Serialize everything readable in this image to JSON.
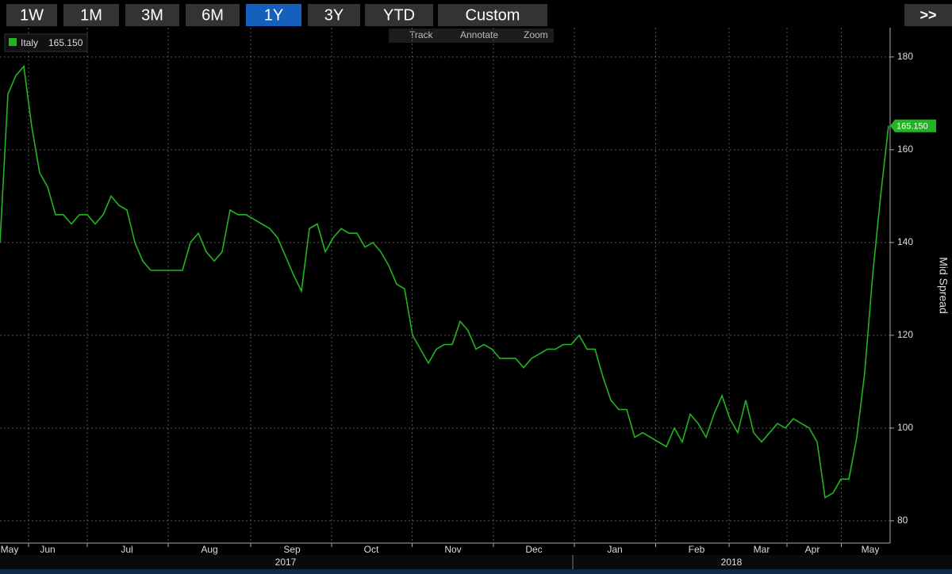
{
  "ui": {
    "ranges": [
      "1W",
      "1M",
      "3M",
      "6M",
      "1Y",
      "3Y",
      "YTD",
      "Custom"
    ],
    "selected_index": 4,
    "next": ">>",
    "tools": [
      "Track",
      "Annotate",
      "Zoom"
    ]
  },
  "chart_data": {
    "type": "line",
    "series": [
      {
        "name": "Italy",
        "color": "#22b422",
        "last_value_label": "165.150",
        "values": [
          140,
          172,
          176,
          178,
          165,
          155,
          152,
          146,
          146,
          144,
          146,
          146,
          144,
          146,
          150,
          148,
          147,
          140,
          136,
          134,
          134,
          134,
          134,
          134,
          140,
          142,
          138,
          136,
          138,
          147,
          146,
          146,
          145,
          144,
          143,
          141,
          137,
          133,
          129.5,
          143,
          144,
          138,
          141,
          143,
          142,
          142,
          139,
          140,
          138,
          135,
          131,
          130,
          120,
          117,
          114,
          117,
          118,
          118,
          123,
          121,
          117,
          118,
          117,
          115,
          115,
          115,
          113,
          115,
          116,
          117,
          117,
          118,
          118,
          120,
          117,
          117,
          111,
          106,
          104,
          104,
          98,
          99,
          98,
          97,
          96,
          100,
          97,
          103,
          101,
          98,
          103,
          107,
          102,
          99,
          106,
          99,
          97,
          99,
          101,
          100,
          102,
          101,
          100,
          97,
          85,
          86,
          89,
          89,
          98,
          112,
          133,
          150,
          165.15
        ]
      }
    ],
    "xlim": [
      0,
      112.2
    ],
    "xticks": [
      {
        "value": 1.2,
        "label": "May"
      },
      {
        "value": 6.0,
        "label": "Jun"
      },
      {
        "value": 16.0,
        "label": "Jul"
      },
      {
        "value": 26.4,
        "label": "Aug"
      },
      {
        "value": 36.8,
        "label": "Sep"
      },
      {
        "value": 46.8,
        "label": "Oct"
      },
      {
        "value": 57.1,
        "label": "Nov"
      },
      {
        "value": 67.3,
        "label": "Dec"
      },
      {
        "value": 77.5,
        "label": "Jan"
      },
      {
        "value": 87.8,
        "label": "Feb"
      },
      {
        "value": 96.0,
        "label": "Mar"
      },
      {
        "value": 102.4,
        "label": "Apr"
      },
      {
        "value": 109.7,
        "label": "May"
      }
    ],
    "year_labels": [
      {
        "value": 36.0,
        "label": "2017"
      },
      {
        "value": 92.2,
        "label": "2018"
      }
    ],
    "ylim": [
      75.2,
      186.3
    ],
    "yticks": [
      80,
      100,
      120,
      140,
      160,
      180
    ],
    "y_label": "Mid Spread",
    "grid": true
  }
}
